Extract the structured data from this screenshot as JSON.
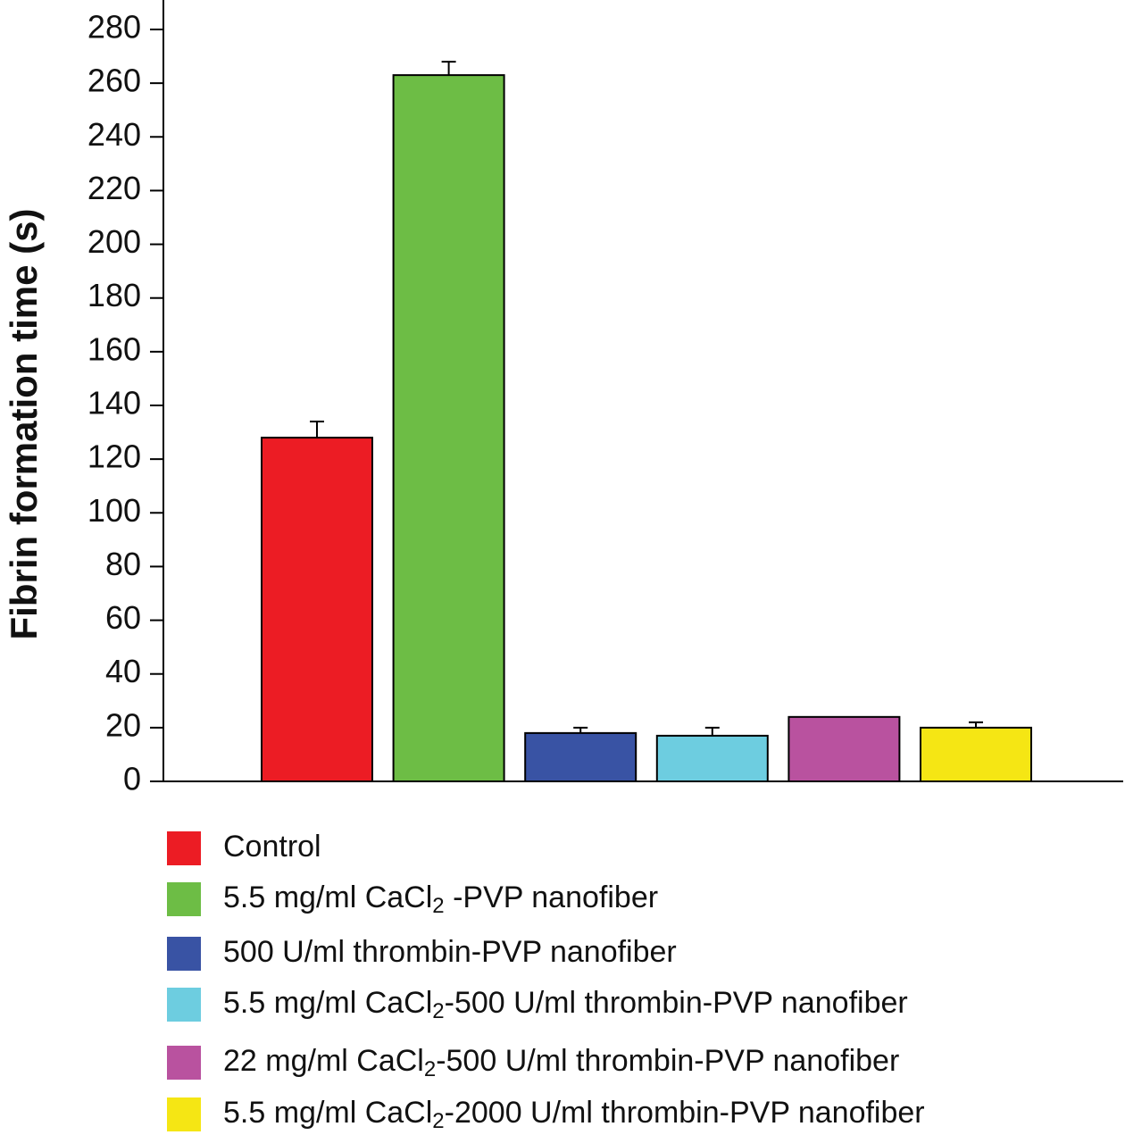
{
  "chart_data": {
    "type": "bar",
    "y_label": "Fibrin formation time (s)",
    "ylim": [
      0,
      280
    ],
    "yticks": [
      0,
      20,
      40,
      60,
      80,
      100,
      120,
      140,
      160,
      180,
      200,
      220,
      240,
      260,
      280
    ],
    "series": [
      {
        "name": "Control",
        "color": "#ec1c24",
        "values": [
          128
        ],
        "errors": [
          6
        ]
      },
      {
        "name": "5.5 mg/ml CaCl2 -PVP nanofiber",
        "color": "#6dbd45",
        "values": [
          263
        ],
        "errors": [
          5
        ]
      },
      {
        "name": "500 U/ml thrombin-PVP nanofiber",
        "color": "#3953a4",
        "values": [
          18
        ],
        "errors": [
          2
        ]
      },
      {
        "name": "5.5 mg/ml CaCl2-500 U/ml thrombin-PVP nanofiber",
        "color": "#6dcde0",
        "values": [
          17
        ],
        "errors": [
          3
        ]
      },
      {
        "name": "22 mg/ml CaCl2-500 U/ml thrombin-PVP nanofiber",
        "color": "#b9529f",
        "values": [
          24
        ],
        "errors": [
          null
        ]
      },
      {
        "name": "5.5 mg/ml CaCl2-2000 U/ml thrombin-PVP nanofiber",
        "color": "#f5e614",
        "values": [
          20
        ],
        "errors": [
          2
        ]
      }
    ]
  }
}
